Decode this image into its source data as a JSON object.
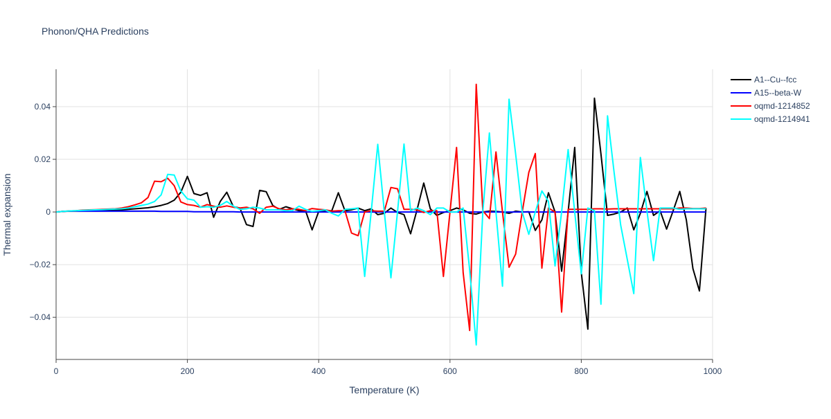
{
  "chart_data": {
    "type": "line",
    "title": "Phonon/QHA Predictions",
    "xlabel": "Temperature (K)",
    "ylabel": "Thermal expansion",
    "xlim": [
      0,
      1000
    ],
    "ylim": [
      -0.056,
      0.0542
    ],
    "xticks": [
      0,
      200,
      400,
      600,
      800,
      1000
    ],
    "xtick_labels": [
      "0",
      "200",
      "400",
      "600",
      "800",
      "1000"
    ],
    "yticks": [
      -0.04,
      -0.02,
      0,
      0.02,
      0.04
    ],
    "ytick_labels": [
      "−0.04",
      "−0.02",
      "0",
      "0.02",
      "0.04"
    ],
    "grid": true,
    "legend_position": "top-right",
    "x_start": 0,
    "x_step": 10,
    "series": [
      {
        "name": "A1--Cu--fcc",
        "color": "#000000",
        "values": [
          0,
          0.0002,
          0.0003,
          0.0004,
          0.0005,
          0.0005,
          0.0006,
          0.0006,
          0.0007,
          0.0007,
          0.0008,
          0.001,
          0.0012,
          0.0014,
          0.0016,
          0.002,
          0.0025,
          0.0032,
          0.0045,
          0.0075,
          0.0135,
          0.007,
          0.0063,
          0.0073,
          -0.002,
          0.004,
          0.0075,
          0.002,
          0.0015,
          -0.0048,
          -0.0055,
          0.0082,
          0.0077,
          0.0025,
          0.001,
          0.002,
          0.0012,
          0.0005,
          0.0005,
          -0.0068,
          0.0002,
          0.0005,
          0.0005,
          0.0073,
          0.0005,
          0.0008,
          0.0015,
          0.0005,
          0.0012,
          -0.001,
          -0.0005,
          0.0015,
          -0.0002,
          -0.001,
          -0.0083,
          0.001,
          0.011,
          0.0012,
          -0.0013,
          -0.0002,
          0.0005,
          0.0015,
          0.0008,
          -0.0005,
          -0.0008,
          0,
          0.0003,
          0.0002,
          0,
          -0.0005,
          0.0003,
          0,
          0.0001,
          -0.007,
          -0.003,
          0.0073,
          0,
          -0.0225,
          0,
          0.0245,
          -0.023,
          -0.0445,
          0.0432,
          0.022,
          -0.0013,
          -0.0008,
          0,
          0.0015,
          -0.0068,
          -0.0005,
          0.0078,
          -0.0013,
          0.0005,
          -0.0065,
          0.0005,
          0.0078,
          -0.003,
          -0.0215,
          -0.03,
          0.0015
        ]
      },
      {
        "name": "A15--beta-W",
        "color": "#0000ff",
        "values": [
          0,
          0.0002,
          0.0003,
          0.0003,
          0.0003,
          0.0003,
          0.0003,
          0.0003,
          0.0003,
          0.0003,
          0.0003,
          0.0003,
          0.0003,
          0.0003,
          0.0003,
          0.0003,
          0.0002,
          0.0002,
          0.0002,
          0.0002,
          0.0002,
          0.0001,
          0.0001,
          0.0001,
          0.0001,
          0.0001,
          0.0001,
          0.0001,
          0,
          0,
          0,
          0,
          0,
          0,
          0,
          0,
          0,
          0,
          0,
          0,
          0,
          0,
          0,
          0,
          0,
          0,
          0,
          0,
          0,
          0,
          0,
          0,
          0,
          0,
          0,
          0,
          0,
          0,
          0,
          0,
          0,
          0,
          0,
          0,
          0,
          0,
          0,
          0,
          0,
          0,
          0,
          0,
          0,
          0,
          0,
          0,
          0,
          0,
          0,
          0,
          0,
          0,
          0,
          0,
          0,
          0,
          0,
          0,
          0,
          0,
          0,
          0,
          0,
          0,
          0,
          0,
          0,
          0,
          0,
          0
        ]
      },
      {
        "name": "oqmd-1214852",
        "color": "#ff0000",
        "values": [
          0,
          0.0002,
          0.0004,
          0.0005,
          0.0007,
          0.0008,
          0.0009,
          0.001,
          0.0011,
          0.0012,
          0.0015,
          0.002,
          0.0027,
          0.0035,
          0.0055,
          0.0117,
          0.0115,
          0.0128,
          0.01,
          0.0038,
          0.0028,
          0.0025,
          0.0018,
          0.0028,
          0.0022,
          0.0018,
          0.0023,
          0.0018,
          0.0015,
          0.0018,
          0.0012,
          -0.0005,
          0.0018,
          0.0022,
          0.0012,
          0.0008,
          0.0012,
          0.001,
          0.0005,
          0.0013,
          0.001,
          0.0008,
          0.0003,
          0.0005,
          0.0005,
          -0.008,
          -0.009,
          0,
          0.0005,
          0.0003,
          0.0003,
          0.0093,
          0.0088,
          0.001,
          0.001,
          0.0008,
          -0.0002,
          0.0005,
          0.0005,
          -0.0245,
          0,
          0.0245,
          -0.023,
          -0.045,
          0.0485,
          0.0005,
          -0.0025,
          0.0228,
          0,
          -0.021,
          -0.016,
          0,
          0.015,
          0.0222,
          -0.0213,
          0.0015,
          0,
          -0.038,
          0.001,
          0.001,
          0.001,
          0.001,
          0.0012,
          0.0012,
          0.0011,
          0.0012,
          0.0012,
          0.0012,
          0.0012,
          0.0012,
          0.0012,
          0.0012,
          0.0012,
          0.0012,
          0.0012,
          0.0015,
          0.0015,
          0.0013,
          0.0013,
          0.0015
        ]
      },
      {
        "name": "oqmd-1214941",
        "color": "#00ffff",
        "values": [
          0,
          0.0002,
          0.0004,
          0.0005,
          0.0006,
          0.0007,
          0.0008,
          0.0009,
          0.001,
          0.0011,
          0.0012,
          0.0015,
          0.002,
          0.0025,
          0.003,
          0.004,
          0.0065,
          0.0143,
          0.014,
          0.008,
          0.005,
          0.0045,
          0.0018,
          0.002,
          0.0018,
          0.0025,
          0.004,
          0.0022,
          0.001,
          0.0012,
          0.0018,
          0.0015,
          0.0008,
          0.0008,
          0.0008,
          0.0005,
          0.0005,
          0.0022,
          0.001,
          0.0002,
          0.0005,
          0.0008,
          -0.0005,
          -0.0015,
          0.001,
          0.0012,
          0.0015,
          -0.0245,
          0,
          0.0257,
          0,
          -0.025,
          0,
          0.0258,
          0.0005,
          0.0015,
          0.0005,
          -0.001,
          0.0015,
          0.0015,
          0,
          0,
          0.0015,
          -0.022,
          -0.0505,
          0,
          0.03,
          0,
          -0.0282,
          0.0428,
          0.022,
          0,
          -0.0085,
          0,
          0.008,
          0.004,
          -0.0205,
          0,
          0.0237,
          0,
          -0.0235,
          0.0015,
          0.0005,
          -0.035,
          0.0365,
          0.015,
          -0.005,
          -0.018,
          -0.031,
          0.0207,
          0.0005,
          -0.0185,
          0.0015,
          0.0015,
          0.0015,
          0.001,
          0.0012,
          0.0012,
          0.0012,
          0.0012
        ]
      }
    ]
  }
}
